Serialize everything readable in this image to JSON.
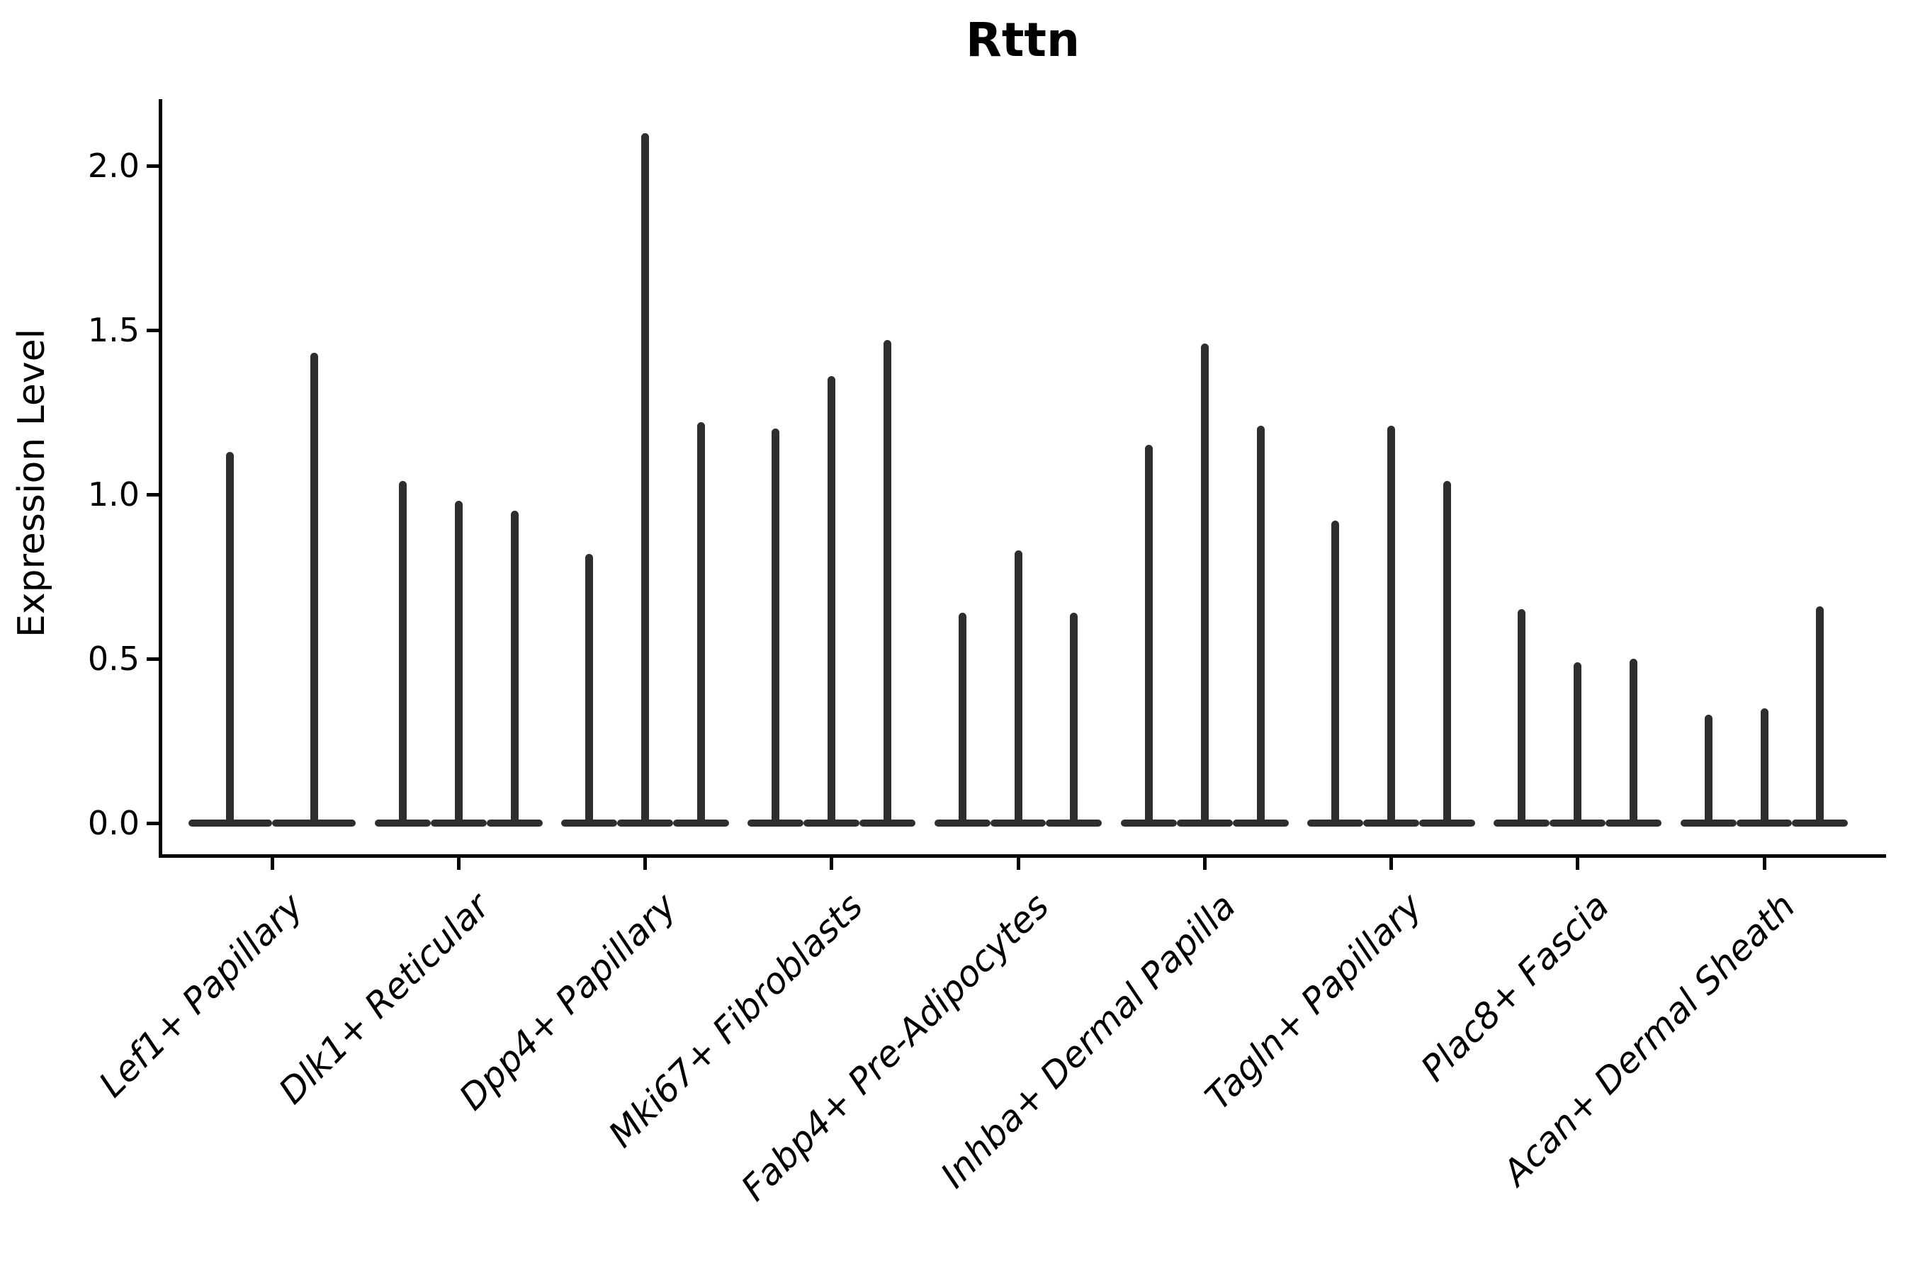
{
  "title": "Rttn",
  "y_axis": {
    "label": "Expression Level",
    "tick_labels": [
      "0.0",
      "0.5",
      "1.0",
      "1.5",
      "2.0"
    ]
  },
  "chart_data": {
    "type": "violin",
    "title": "Rttn",
    "xlabel": "",
    "ylabel": "Expression Level",
    "ylim": [
      0,
      2.2
    ],
    "yticks": [
      0.0,
      0.5,
      1.0,
      1.5,
      2.0
    ],
    "grid": false,
    "legend": "none",
    "violin_color": "#2e2e2e",
    "style_note": "each violin is collapsed to a flat base at 0 with a thin vertical spike up to its maximum expression value",
    "categories": [
      "Lef1+ Papillary",
      "Dlk1+ Reticular",
      "Dpp4+ Papillary",
      "Mki67+ Fibroblasts",
      "Fabp4+ Pre-Adipocytes",
      "Inhba+ Dermal Papilla",
      "Tagln+ Papillary",
      "Plac8+ Fascia",
      "Acan+ Dermal Sheath"
    ],
    "groups": [
      {
        "category": "Lef1+ Papillary",
        "violin_maxima": [
          1.13,
          1.43
        ]
      },
      {
        "category": "Dlk1+ Reticular",
        "violin_maxima": [
          1.04,
          0.98,
          0.95
        ]
      },
      {
        "category": "Dpp4+ Papillary",
        "violin_maxima": [
          0.82,
          2.1,
          1.22
        ]
      },
      {
        "category": "Mki67+ Fibroblasts",
        "violin_maxima": [
          1.2,
          1.36,
          1.47
        ]
      },
      {
        "category": "Fabp4+ Pre-Adipocytes",
        "violin_maxima": [
          0.64,
          0.83,
          0.64
        ]
      },
      {
        "category": "Inhba+ Dermal Papilla",
        "violin_maxima": [
          1.15,
          1.46,
          1.21
        ]
      },
      {
        "category": "Tagln+ Papillary",
        "violin_maxima": [
          0.92,
          1.21,
          1.04
        ]
      },
      {
        "category": "Plac8+ Fascia",
        "violin_maxima": [
          0.65,
          0.49,
          0.5
        ]
      },
      {
        "category": "Acan+ Dermal Sheath",
        "violin_maxima": [
          0.33,
          0.35,
          0.66
        ]
      }
    ]
  }
}
